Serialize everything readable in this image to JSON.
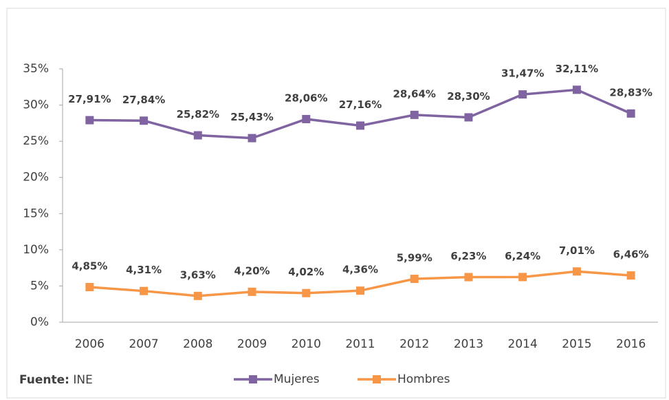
{
  "chart_data": {
    "type": "line",
    "categories": [
      "2006",
      "2007",
      "2008",
      "2009",
      "2010",
      "2011",
      "2012",
      "2013",
      "2014",
      "2015",
      "2016"
    ],
    "series": [
      {
        "name": "Mujeres",
        "color": "#8064a2",
        "values": [
          27.91,
          27.84,
          25.82,
          25.43,
          28.06,
          27.16,
          28.64,
          28.3,
          31.47,
          32.11,
          28.83
        ],
        "value_labels": [
          "27,91%",
          "27,84%",
          "25,82%",
          "25,43%",
          "28,06%",
          "27,16%",
          "28,64%",
          "28,30%",
          "31,47%",
          "32,11%",
          "28,83%"
        ]
      },
      {
        "name": "Hombres",
        "color": "#f79646",
        "values": [
          4.85,
          4.31,
          3.63,
          4.2,
          4.02,
          4.36,
          5.99,
          6.23,
          6.24,
          7.01,
          6.46
        ],
        "value_labels": [
          "4,85%",
          "4,31%",
          "3,63%",
          "4,20%",
          "4,02%",
          "4,36%",
          "5,99%",
          "6,23%",
          "6,24%",
          "7,01%",
          "6,46%"
        ]
      }
    ],
    "ylim": [
      0,
      35
    ],
    "yticks": [
      {
        "value": 0,
        "label": "0%"
      },
      {
        "value": 5,
        "label": "5%"
      },
      {
        "value": 10,
        "label": "10%"
      },
      {
        "value": 15,
        "label": "15%"
      },
      {
        "value": 20,
        "label": "20%"
      },
      {
        "value": 25,
        "label": "25%"
      },
      {
        "value": 30,
        "label": "30%"
      },
      {
        "value": 35,
        "label": "35%"
      }
    ],
    "grid": false,
    "legend": "bottom",
    "source": {
      "label": "Fuente:",
      "text": "INE"
    }
  }
}
